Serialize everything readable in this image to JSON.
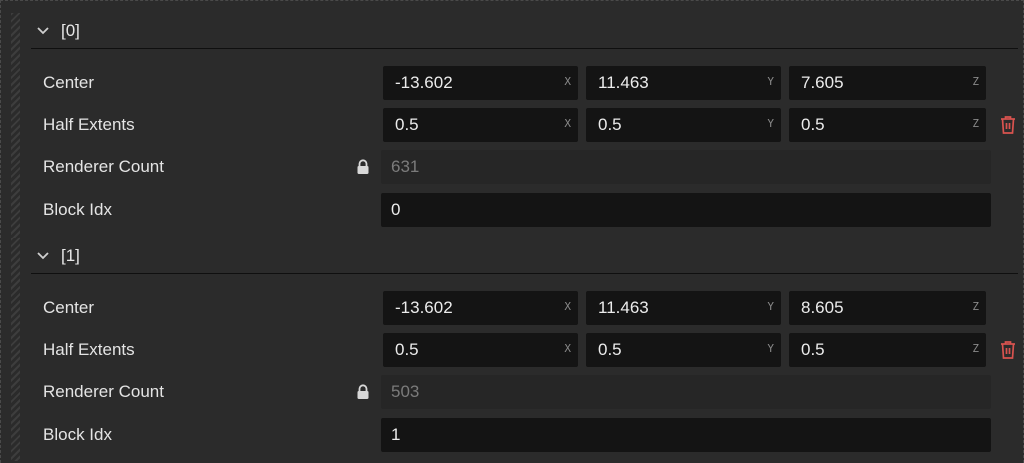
{
  "elements": [
    {
      "index_label": "[0]",
      "center": {
        "label": "Center",
        "x": "-13.602",
        "y": "11.463",
        "z": "7.605"
      },
      "half_extents": {
        "label": "Half Extents",
        "x": "0.5",
        "y": "0.5",
        "z": "0.5"
      },
      "renderer_count": {
        "label": "Renderer Count",
        "value": "631",
        "locked": true
      },
      "block_idx": {
        "label": "Block Idx",
        "value": "0"
      }
    },
    {
      "index_label": "[1]",
      "center": {
        "label": "Center",
        "x": "-13.602",
        "y": "11.463",
        "z": "8.605"
      },
      "half_extents": {
        "label": "Half Extents",
        "x": "0.5",
        "y": "0.5",
        "z": "0.5"
      },
      "renderer_count": {
        "label": "Renderer Count",
        "value": "503",
        "locked": true
      },
      "block_idx": {
        "label": "Block Idx",
        "value": "1"
      }
    }
  ],
  "axis_labels": {
    "x": "X",
    "y": "Y",
    "z": "Z"
  },
  "icons": {
    "collapse": "chevron-down-icon",
    "lock": "lock-icon",
    "delete": "trash-icon"
  },
  "colors": {
    "background": "#2b2b2b",
    "field": "#141414",
    "readonly_field": "#262626",
    "delete_icon": "#d9534f"
  }
}
